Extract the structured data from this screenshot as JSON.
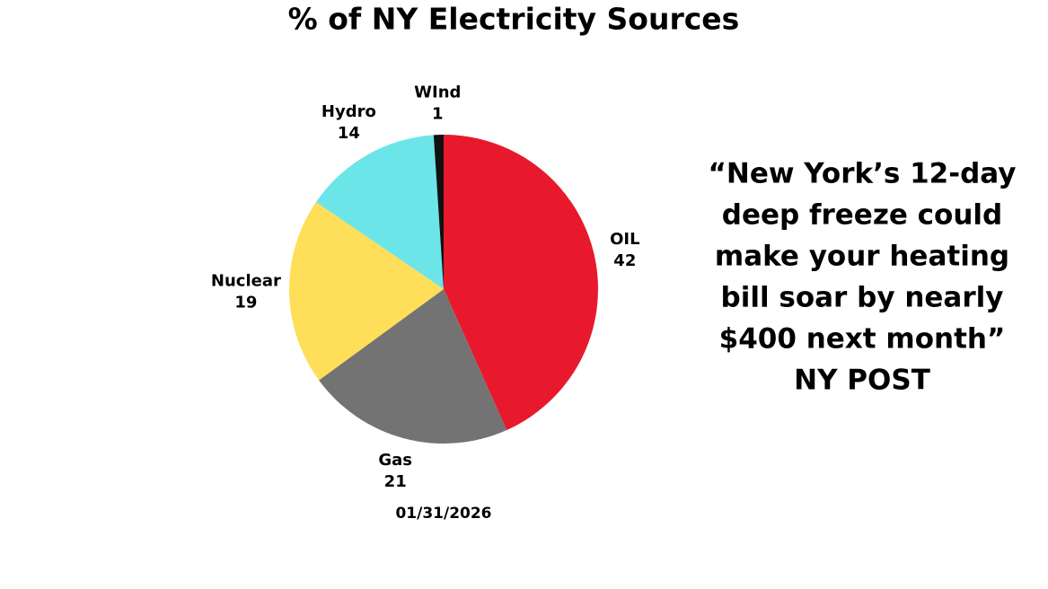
{
  "chart_data": {
    "type": "pie",
    "title": "% of NY Electricity Sources",
    "categories": [
      "OIL",
      "Gas",
      "Nuclear",
      "Hydro",
      "WInd"
    ],
    "values": [
      42,
      21,
      19,
      14,
      1
    ],
    "colors": [
      "#e8192c",
      "#737373",
      "#ffde59",
      "#6ce5e8",
      "#111111"
    ],
    "date": "01/31/2026",
    "quote": [
      "“New York’s 12-day",
      "deep freeze could",
      "make your heating",
      "bill soar by nearly",
      "$400 next month”",
      "NY POST"
    ]
  }
}
